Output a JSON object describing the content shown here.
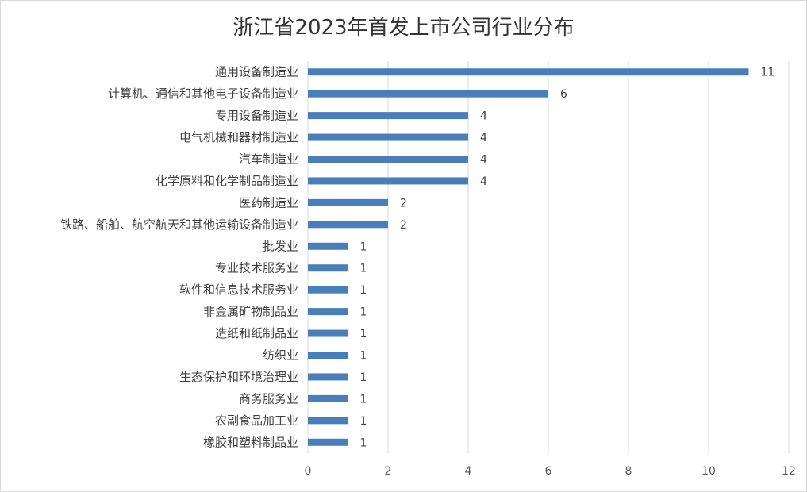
{
  "chart_data": {
    "type": "bar",
    "orientation": "horizontal",
    "title": "浙江省2023年首发上市公司行业分布",
    "categories": [
      "通用设备制造业",
      "计算机、通信和其他电子设备制造业",
      "专用设备制造业",
      "电气机械和器材制造业",
      "汽车制造业",
      "化学原料和化学制品制造业",
      "医药制造业",
      "铁路、船舶、航空航天和其他运输设备制造业",
      "批发业",
      "专业技术服务业",
      "软件和信息技术服务业",
      "非金属矿物制品业",
      "造纸和纸制品业",
      "纺织业",
      "生态保护和环境治理业",
      "商务服务业",
      "农副食品加工业",
      "橡胶和塑料制品业"
    ],
    "values": [
      11,
      6,
      4,
      4,
      4,
      4,
      2,
      2,
      1,
      1,
      1,
      1,
      1,
      1,
      1,
      1,
      1,
      1
    ],
    "xlim": [
      0,
      12
    ],
    "xticks": [
      0,
      2,
      4,
      6,
      8,
      10,
      12
    ],
    "grid": true,
    "data_labels": true,
    "bar_color": "#4a7ebb",
    "grid_color": "#d9d9d9"
  }
}
